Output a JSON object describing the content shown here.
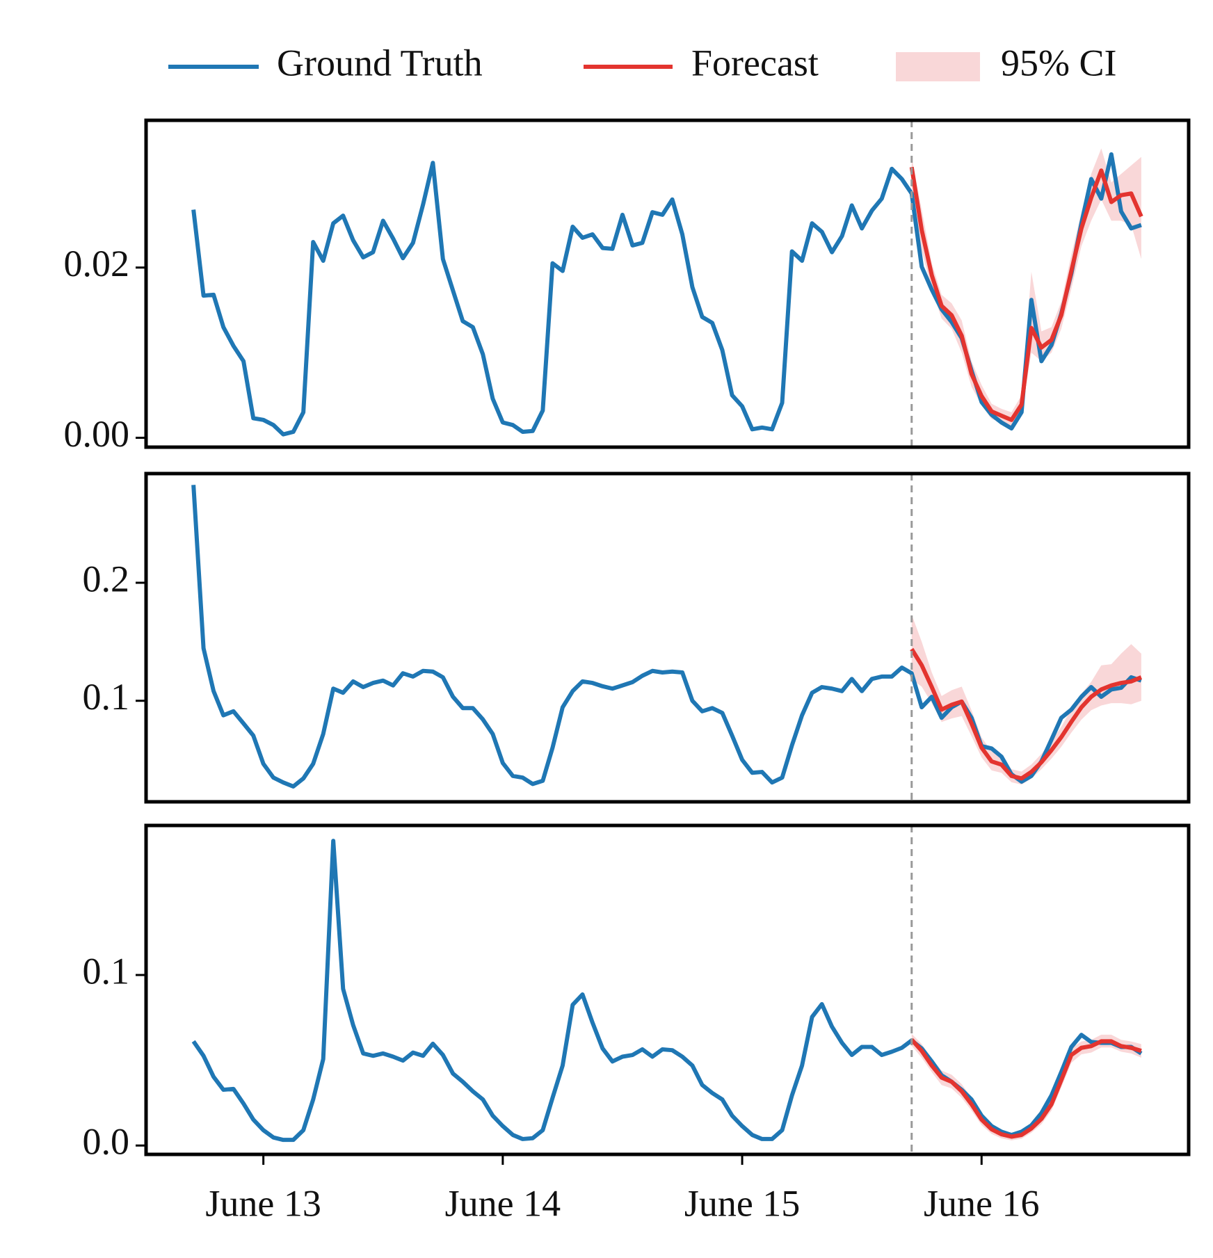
{
  "chart_data": [
    {
      "type": "line",
      "xlim": [
        12.51,
        16.865
      ],
      "ylim": [
        -0.0011,
        0.0373
      ],
      "yticks": [
        {
          "value": 0,
          "label": "0.00"
        },
        {
          "value": 0.02,
          "label": "0.02"
        }
      ],
      "vline": 15.708,
      "x": [
        12.708,
        12.75,
        12.792,
        12.833,
        12.875,
        12.917,
        12.958,
        13,
        13.042,
        13.083,
        13.125,
        13.167,
        13.208,
        13.25,
        13.292,
        13.333,
        13.375,
        13.417,
        13.458,
        13.5,
        13.542,
        13.583,
        13.625,
        13.667,
        13.708,
        13.75,
        13.792,
        13.833,
        13.875,
        13.917,
        13.958,
        14,
        14.042,
        14.083,
        14.125,
        14.167,
        14.208,
        14.25,
        14.292,
        14.333,
        14.375,
        14.417,
        14.458,
        14.5,
        14.542,
        14.583,
        14.625,
        14.667,
        14.708,
        14.75,
        14.792,
        14.833,
        14.875,
        14.917,
        14.958,
        15,
        15.042,
        15.083,
        15.125,
        15.167,
        15.208,
        15.25,
        15.292,
        15.333,
        15.375,
        15.417,
        15.458,
        15.5,
        15.542,
        15.583,
        15.625,
        15.667,
        15.708,
        15.75,
        15.792,
        15.833,
        15.875,
        15.917,
        15.958,
        16,
        16.042,
        16.083,
        16.125,
        16.167,
        16.208,
        16.25,
        16.292,
        16.333,
        16.375,
        16.417,
        16.458,
        16.5,
        16.542,
        16.583,
        16.625,
        16.667
      ],
      "series": [
        {
          "name": "Ground Truth",
          "color": "#1f77b4",
          "values": [
            0.0268,
            0.0167,
            0.0168,
            0.013,
            0.0108,
            0.009,
            0.0023,
            0.0021,
            0.0015,
            0.0004,
            0.0007,
            0.003,
            0.023,
            0.0208,
            0.0252,
            0.0261,
            0.0232,
            0.0212,
            0.0218,
            0.0255,
            0.0234,
            0.0211,
            0.0229,
            0.0274,
            0.0323,
            0.021,
            0.0173,
            0.0137,
            0.013,
            0.0098,
            0.0046,
            0.0018,
            0.0015,
            0.0007,
            0.0008,
            0.0032,
            0.0205,
            0.0196,
            0.0248,
            0.0235,
            0.0239,
            0.0223,
            0.0222,
            0.0262,
            0.0226,
            0.0229,
            0.0265,
            0.0262,
            0.028,
            0.0239,
            0.0177,
            0.0142,
            0.0135,
            0.0103,
            0.005,
            0.0037,
            0.001,
            0.0012,
            0.001,
            0.0041,
            0.0219,
            0.0208,
            0.0252,
            0.0242,
            0.0218,
            0.0237,
            0.0273,
            0.0246,
            0.0267,
            0.0281,
            0.0316,
            0.0304,
            0.0287,
            0.0201,
            0.0174,
            0.0151,
            0.0136,
            0.0117,
            0.0079,
            0.0042,
            0.0027,
            0.0018,
            0.0011,
            0.003,
            0.0162,
            0.009,
            0.0109,
            0.0146,
            0.0193,
            0.0252,
            0.0304,
            0.0281,
            0.0333,
            0.0266,
            0.0246,
            0.025
          ]
        },
        {
          "name": "Forecast",
          "color": "#e3342f",
          "x": [
            15.708,
            15.75,
            15.792,
            15.833,
            15.875,
            15.917,
            15.958,
            16,
            16.042,
            16.083,
            16.125,
            16.167,
            16.208,
            16.25,
            16.292,
            16.333,
            16.375,
            16.417,
            16.458,
            16.5,
            16.542,
            16.583,
            16.625,
            16.667
          ],
          "values": [
            0.0318,
            0.0244,
            0.0191,
            0.0155,
            0.0144,
            0.012,
            0.0075,
            0.0049,
            0.0031,
            0.0026,
            0.0021,
            0.0039,
            0.0129,
            0.0106,
            0.0115,
            0.0144,
            0.0196,
            0.0246,
            0.0282,
            0.0314,
            0.0277,
            0.0285,
            0.0287,
            0.026
          ]
        },
        {
          "name": "95% CI",
          "color": "#f9d7d8",
          "x": [
            15.708,
            15.75,
            15.792,
            15.833,
            15.875,
            15.917,
            15.958,
            16,
            16.042,
            16.083,
            16.125,
            16.167,
            16.208,
            16.25,
            16.292,
            16.333,
            16.375,
            16.417,
            16.458,
            16.5,
            16.542,
            16.583,
            16.625,
            16.667
          ],
          "lower": [
            0.029,
            0.022,
            0.0175,
            0.014,
            0.0128,
            0.01,
            0.006,
            0.0038,
            0.0022,
            0.0018,
            0.0013,
            0.0028,
            0.01,
            0.009,
            0.01,
            0.0128,
            0.0175,
            0.0225,
            0.0255,
            0.028,
            0.0255,
            0.0255,
            0.025,
            0.021
          ],
          "upper": [
            0.033,
            0.0268,
            0.0205,
            0.0168,
            0.0158,
            0.0138,
            0.009,
            0.0062,
            0.004,
            0.0034,
            0.003,
            0.005,
            0.0195,
            0.0125,
            0.013,
            0.016,
            0.0215,
            0.0265,
            0.031,
            0.034,
            0.03,
            0.031,
            0.032,
            0.033
          ]
        }
      ]
    },
    {
      "type": "line",
      "xlim": [
        12.51,
        16.865
      ],
      "ylim": [
        0.0144,
        0.2925
      ],
      "yticks": [
        0.1,
        0.2
      ],
      "vline": 15.708,
      "x": [
        12.708,
        12.75,
        12.792,
        12.833,
        12.875,
        12.917,
        12.958,
        13,
        13.042,
        13.083,
        13.125,
        13.167,
        13.208,
        13.25,
        13.292,
        13.333,
        13.375,
        13.417,
        13.458,
        13.5,
        13.542,
        13.583,
        13.625,
        13.667,
        13.708,
        13.75,
        13.792,
        13.833,
        13.875,
        13.917,
        13.958,
        14,
        14.042,
        14.083,
        14.125,
        14.167,
        14.208,
        14.25,
        14.292,
        14.333,
        14.375,
        14.417,
        14.458,
        14.5,
        14.542,
        14.583,
        14.625,
        14.667,
        14.708,
        14.75,
        14.792,
        14.833,
        14.875,
        14.917,
        14.958,
        15,
        15.042,
        15.083,
        15.125,
        15.167,
        15.208,
        15.25,
        15.292,
        15.333,
        15.375,
        15.417,
        15.458,
        15.5,
        15.542,
        15.583,
        15.625,
        15.667,
        15.708,
        15.75,
        15.792,
        15.833,
        15.875,
        15.917,
        15.958,
        16,
        16.042,
        16.083,
        16.125,
        16.167,
        16.208,
        16.25,
        16.292,
        16.333,
        16.375,
        16.417,
        16.458,
        16.5,
        16.542,
        16.583,
        16.625,
        16.667
      ],
      "series": [
        {
          "name": "Ground Truth",
          "color": "#1f77b4",
          "values": [
            0.2829,
            0.1445,
            0.1082,
            0.0877,
            0.0911,
            0.0808,
            0.0705,
            0.0466,
            0.0349,
            0.0308,
            0.0274,
            0.0342,
            0.0466,
            0.0719,
            0.1103,
            0.1068,
            0.1164,
            0.1116,
            0.1151,
            0.1171,
            0.113,
            0.1233,
            0.1205,
            0.1253,
            0.1247,
            0.1199,
            0.1034,
            0.0938,
            0.0938,
            0.0842,
            0.0719,
            0.0473,
            0.0363,
            0.0349,
            0.0295,
            0.0322,
            0.0603,
            0.0945,
            0.1082,
            0.1164,
            0.1151,
            0.1123,
            0.1103,
            0.113,
            0.1158,
            0.1212,
            0.1253,
            0.124,
            0.1247,
            0.124,
            0.1,
            0.0911,
            0.0938,
            0.0897,
            0.0705,
            0.05,
            0.039,
            0.0397,
            0.0308,
            0.0349,
            0.0623,
            0.0877,
            0.1068,
            0.1116,
            0.1103,
            0.1082,
            0.1185,
            0.1082,
            0.1185,
            0.1205,
            0.1205,
            0.1281,
            0.1233,
            0.0945,
            0.1034,
            0.0856,
            0.0945,
            0.0993,
            0.0856,
            0.0616,
            0.0596,
            0.0527,
            0.0377,
            0.0315,
            0.0363,
            0.0486,
            0.0671,
            0.0856,
            0.0925,
            0.1034,
            0.1116,
            0.1034,
            0.1096,
            0.111,
            0.1199,
            0.1171
          ]
        },
        {
          "name": "Forecast",
          "color": "#e3342f",
          "x": [
            15.708,
            15.75,
            15.792,
            15.833,
            15.875,
            15.917,
            15.958,
            16,
            16.042,
            16.083,
            16.125,
            16.167,
            16.208,
            16.25,
            16.292,
            16.333,
            16.375,
            16.417,
            16.458,
            16.5,
            16.542,
            16.583,
            16.625,
            16.667
          ],
          "values": [
            0.1438,
            0.1301,
            0.1116,
            0.0925,
            0.0966,
            0.0993,
            0.0808,
            0.0603,
            0.0486,
            0.0459,
            0.0363,
            0.0342,
            0.0397,
            0.0479,
            0.0582,
            0.0692,
            0.0822,
            0.0945,
            0.1034,
            0.1096,
            0.113,
            0.1151,
            0.1164,
            0.1199
          ]
        },
        {
          "name": "95% CI",
          "color": "#f9d7d8",
          "x": [
            15.708,
            15.75,
            15.792,
            15.833,
            15.875,
            15.917,
            15.958,
            16,
            16.042,
            16.083,
            16.125,
            16.167,
            16.208,
            16.25,
            16.292,
            16.333,
            16.375,
            16.417,
            16.458,
            16.5,
            16.542,
            16.583,
            16.625,
            16.667
          ],
          "lower": [
            0.118,
            0.112,
            0.098,
            0.082,
            0.085,
            0.087,
            0.07,
            0.052,
            0.041,
            0.039,
            0.031,
            0.029,
            0.034,
            0.042,
            0.051,
            0.061,
            0.073,
            0.084,
            0.092,
            0.096,
            0.098,
            0.098,
            0.097,
            0.1
          ],
          "upper": [
            0.173,
            0.15,
            0.124,
            0.104,
            0.109,
            0.112,
            0.092,
            0.069,
            0.057,
            0.053,
            0.042,
            0.04,
            0.046,
            0.055,
            0.066,
            0.078,
            0.093,
            0.106,
            0.116,
            0.13,
            0.131,
            0.14,
            0.148,
            0.14
          ]
        }
      ]
    },
    {
      "type": "line",
      "xlim": [
        12.51,
        16.865
      ],
      "ylim": [
        -0.0052,
        0.1877
      ],
      "yticks": [
        {
          "value": 0,
          "label": "0.0"
        },
        0.1
      ],
      "xticks": [
        {
          "value": 13,
          "label": "June 13"
        },
        {
          "value": 14,
          "label": "June 14"
        },
        {
          "value": 15,
          "label": "June 15"
        },
        {
          "value": 16,
          "label": "June 16"
        }
      ],
      "vline": 15.708,
      "x": [
        12.708,
        12.75,
        12.792,
        12.833,
        12.875,
        12.917,
        12.958,
        13,
        13.042,
        13.083,
        13.125,
        13.167,
        13.208,
        13.25,
        13.292,
        13.333,
        13.375,
        13.417,
        13.458,
        13.5,
        13.542,
        13.583,
        13.625,
        13.667,
        13.708,
        13.75,
        13.792,
        13.833,
        13.875,
        13.917,
        13.958,
        14,
        14.042,
        14.083,
        14.125,
        14.167,
        14.208,
        14.25,
        14.292,
        14.333,
        14.375,
        14.417,
        14.458,
        14.5,
        14.542,
        14.583,
        14.625,
        14.667,
        14.708,
        14.75,
        14.792,
        14.833,
        14.875,
        14.917,
        14.958,
        15,
        15.042,
        15.083,
        15.125,
        15.167,
        15.208,
        15.25,
        15.292,
        15.333,
        15.375,
        15.417,
        15.458,
        15.5,
        15.542,
        15.583,
        15.625,
        15.667,
        15.708,
        15.75,
        15.792,
        15.833,
        15.875,
        15.917,
        15.958,
        16,
        16.042,
        16.083,
        16.125,
        16.167,
        16.208,
        16.25,
        16.292,
        16.333,
        16.375,
        16.417,
        16.458,
        16.5,
        16.542,
        16.583,
        16.625,
        16.667
      ],
      "series": [
        {
          "name": "Ground Truth",
          "color": "#1f77b4",
          "values": [
            0.0611,
            0.0526,
            0.0403,
            0.0327,
            0.0332,
            0.0246,
            0.0152,
            0.009,
            0.0047,
            0.0033,
            0.0033,
            0.009,
            0.027,
            0.0507,
            0.1787,
            0.0919,
            0.0706,
            0.054,
            0.0526,
            0.054,
            0.0521,
            0.0498,
            0.0545,
            0.0526,
            0.0597,
            0.0531,
            0.0422,
            0.0374,
            0.0318,
            0.027,
            0.0175,
            0.0114,
            0.0062,
            0.0038,
            0.0043,
            0.009,
            0.028,
            0.0469,
            0.0825,
            0.0886,
            0.072,
            0.0569,
            0.0493,
            0.0521,
            0.0531,
            0.0564,
            0.0521,
            0.0564,
            0.0559,
            0.0521,
            0.0469,
            0.0355,
            0.0308,
            0.027,
            0.0175,
            0.0114,
            0.0062,
            0.0038,
            0.0038,
            0.009,
            0.0294,
            0.0469,
            0.0754,
            0.0829,
            0.0697,
            0.0602,
            0.0531,
            0.0578,
            0.0578,
            0.0531,
            0.055,
            0.0573,
            0.0616,
            0.0569,
            0.0493,
            0.0412,
            0.0374,
            0.0327,
            0.027,
            0.0175,
            0.0114,
            0.0081,
            0.0062,
            0.0081,
            0.0118,
            0.019,
            0.0294,
            0.0431,
            0.0578,
            0.0649,
            0.0607,
            0.0602,
            0.0602,
            0.0578,
            0.0578,
            0.054
          ]
        },
        {
          "name": "Forecast",
          "color": "#e3342f",
          "x": [
            15.708,
            15.75,
            15.792,
            15.833,
            15.875,
            15.917,
            15.958,
            16,
            16.042,
            16.083,
            16.125,
            16.167,
            16.208,
            16.25,
            16.292,
            16.333,
            16.375,
            16.417,
            16.458,
            16.5,
            16.542,
            16.583,
            16.625,
            16.667
          ],
          "values": [
            0.0621,
            0.0555,
            0.0469,
            0.0398,
            0.0374,
            0.0318,
            0.0242,
            0.0152,
            0.0095,
            0.0066,
            0.0052,
            0.0062,
            0.01,
            0.0156,
            0.0242,
            0.0384,
            0.0531,
            0.0573,
            0.0583,
            0.0611,
            0.0611,
            0.0583,
            0.0573,
            0.0555
          ]
        },
        {
          "name": "95% CI",
          "color": "#f9d7d8",
          "x": [
            15.708,
            15.75,
            15.792,
            15.833,
            15.875,
            15.917,
            15.958,
            16,
            16.042,
            16.083,
            16.125,
            16.167,
            16.208,
            16.25,
            16.292,
            16.333,
            16.375,
            16.417,
            16.458,
            16.5,
            16.542,
            16.583,
            16.625,
            16.667
          ],
          "lower": [
            0.0585,
            0.0515,
            0.043,
            0.0355,
            0.0335,
            0.028,
            0.0205,
            0.012,
            0.0068,
            0.0042,
            0.003,
            0.004,
            0.0075,
            0.0125,
            0.0205,
            0.034,
            0.0485,
            0.0535,
            0.0545,
            0.0575,
            0.0575,
            0.055,
            0.054,
            0.0515
          ],
          "upper": [
            0.0655,
            0.0595,
            0.051,
            0.044,
            0.0415,
            0.036,
            0.028,
            0.0185,
            0.0122,
            0.009,
            0.0075,
            0.0085,
            0.0125,
            0.0188,
            0.028,
            0.0425,
            0.057,
            0.061,
            0.062,
            0.065,
            0.065,
            0.062,
            0.061,
            0.0595
          ]
        }
      ]
    }
  ]
}
